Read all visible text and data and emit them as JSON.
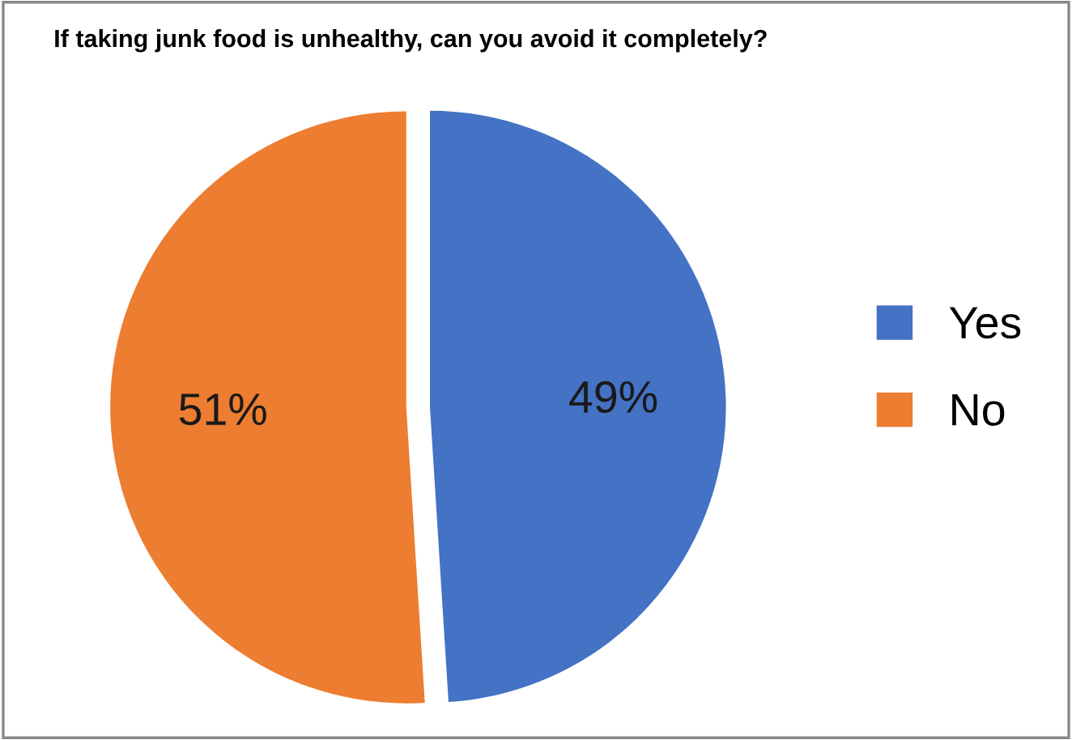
{
  "chart_data": {
    "type": "pie",
    "title": "If taking junk food is unhealthy, can you avoid it completely?",
    "categories": [
      "Yes",
      "No"
    ],
    "values": [
      49,
      51
    ],
    "colors": [
      "#4472c4",
      "#ed7d31"
    ],
    "value_labels": [
      "49%",
      "51%"
    ],
    "legend": "right"
  }
}
